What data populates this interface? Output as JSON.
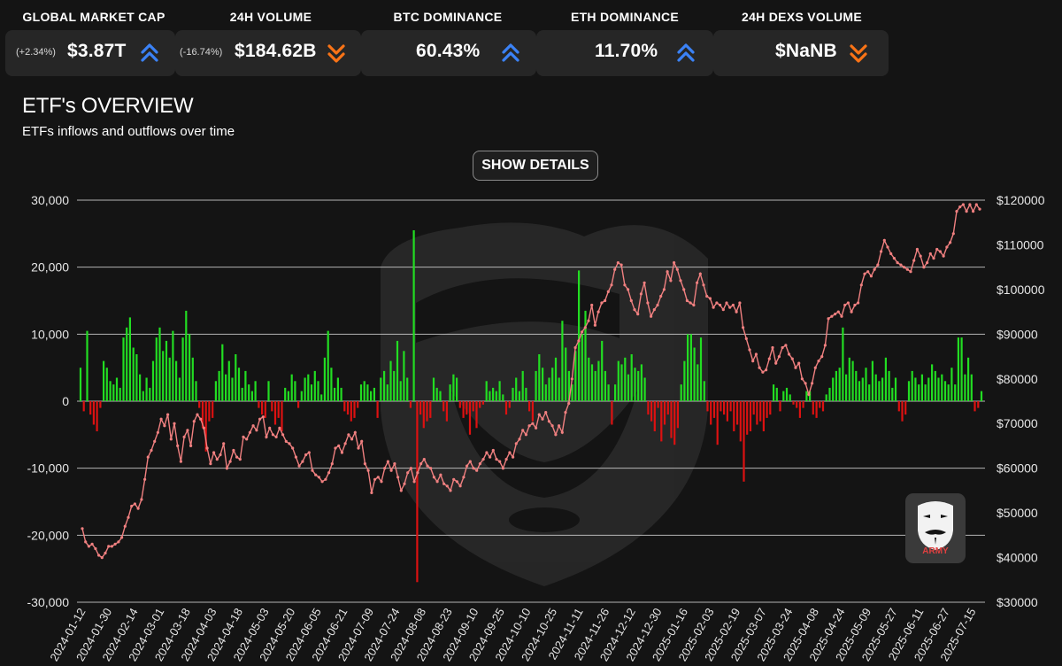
{
  "stats": [
    {
      "title": "GLOBAL MARKET CAP",
      "change": "(+2.34%)",
      "value": "$3.87T",
      "trend": "up",
      "trend_icon": "double-chevron-up-icon"
    },
    {
      "title": "24H VOLUME",
      "change": "(-16.74%)",
      "value": "$184.62B",
      "trend": "down",
      "trend_icon": "double-chevron-down-icon"
    },
    {
      "title": "BTC DOMINANCE",
      "change": "",
      "value": "60.43%",
      "trend": "up",
      "trend_icon": "double-chevron-up-icon"
    },
    {
      "title": "ETH DOMINANCE",
      "change": "",
      "value": "11.70%",
      "trend": "up",
      "trend_icon": "double-chevron-up-icon"
    },
    {
      "title": "24H DEXS VOLUME",
      "change": "",
      "value": "$NaNB",
      "trend": "down",
      "trend_icon": "double-chevron-down-icon"
    }
  ],
  "colors": {
    "background": "#141414",
    "card": "#262626",
    "up": "#3b82f6",
    "down": "#f97316",
    "inflow": "#22dd22",
    "outflow": "#dd1111",
    "price_line": "#f08080",
    "grid": "#cfcfcf"
  },
  "etf": {
    "title": "ETF's OVERVIEW",
    "subtitle": "ETFs inflows and outflows over time",
    "button_label": "SHOW DETAILS"
  },
  "badge": {
    "text": "ARMY",
    "icon": "army-mask-logo"
  },
  "chart_data": {
    "type": "bar+line",
    "grid": true,
    "left_axis": {
      "range": [
        -30000,
        30000
      ],
      "ticks": [
        "30,000",
        "20,000",
        "10,000",
        "0",
        "-10,000",
        "-20,000",
        "-30,000"
      ]
    },
    "right_axis": {
      "range": [
        30000,
        120000
      ],
      "ticks": [
        "$120000",
        "$110000",
        "$100000",
        "$90000",
        "$80000",
        "$70000",
        "$60000",
        "$50000",
        "$40000",
        "$30000"
      ]
    },
    "x_labels": [
      "2024-01-12",
      "2024-01-30",
      "2024-02-14",
      "2024-03-01",
      "2024-03-18",
      "2024-04-03",
      "2024-04-18",
      "2024-05-03",
      "2024-05-20",
      "2024-06-05",
      "2024-06-21",
      "2024-07-09",
      "2024-07-24",
      "2024-08-08",
      "2024-08-23",
      "2024-09-10",
      "2024-09-25",
      "2024-10-10",
      "2024-10-25",
      "2024-11-11",
      "2024-11-26",
      "2024-12-12",
      "2024-12-30",
      "2025-01-16",
      "2025-02-03",
      "2025-02-19",
      "2025-03-07",
      "2025-03-24",
      "2025-04-08",
      "2025-04-24",
      "2025-05-09",
      "2025-05-27",
      "2025-06-11",
      "2025-06-27",
      "2025-07-15"
    ],
    "flows_series": {
      "name": "",
      "color": "inflow/outflow",
      "values": [
        5000,
        -1500,
        10500,
        -2000,
        -3500,
        -4500,
        -1000,
        6000,
        5000,
        3000,
        2500,
        3500,
        2000,
        9500,
        11000,
        12500,
        8000,
        7000,
        4000,
        1500,
        3500,
        2000,
        6000,
        9500,
        11000,
        7500,
        9000,
        6500,
        10500,
        6000,
        3500,
        9500,
        13500,
        10000,
        6500,
        3000,
        -1000,
        -4000,
        -7500,
        -3000,
        -2500,
        3000,
        4500,
        8500,
        4000,
        6000,
        3500,
        7000,
        5000,
        2000,
        4500,
        2500,
        1500,
        3000,
        -1000,
        -2000,
        -2500,
        3000,
        -1500,
        -3500,
        -2500,
        -4500,
        2000,
        1500,
        4000,
        3000,
        -1000,
        1500,
        3500,
        4000,
        2500,
        4500,
        3000,
        1000,
        6500,
        10500,
        5000,
        2000,
        3500,
        2000,
        -1500,
        -2000,
        -3000,
        -2500,
        -1000,
        2500,
        3000,
        2500,
        1500,
        2000,
        -2500,
        3500,
        4500,
        2500,
        6000,
        4500,
        9000,
        3000,
        7500,
        3500,
        -1000,
        25500,
        -27000,
        -2000,
        -4000,
        -3000,
        -2500,
        3500,
        2000,
        1500,
        -1500,
        -3000,
        2500,
        4000,
        3500,
        -1000,
        -2500,
        -2000,
        -5000,
        -1500,
        -4000,
        -1000,
        -500,
        3000,
        1500,
        2000,
        1500,
        3000,
        1000,
        -2000,
        -1000,
        2000,
        3500,
        1500,
        4500,
        2000,
        -1500,
        -3000,
        4500,
        7000,
        5000,
        2500,
        3500,
        5000,
        6500,
        3500,
        12000,
        8000,
        4500,
        2500,
        7500,
        19500,
        10000,
        13500,
        6500,
        5500,
        4500,
        6000,
        9000,
        4500,
        2500,
        -3500,
        2500,
        6000,
        5500,
        6500,
        4000,
        7000,
        5000,
        4500,
        5500,
        3500,
        -2000,
        -3000,
        -4500,
        -1000,
        -6000,
        -3500,
        -2000,
        -5500,
        -6500,
        -4000,
        2500,
        6000,
        10000,
        10000,
        8000,
        5500,
        9500,
        3000,
        -1500,
        -3500,
        -2500,
        -6500,
        -1500,
        -2000,
        -3000,
        -1500,
        -4500,
        -3500,
        -6000,
        -12000,
        -5000,
        -4500,
        -2000,
        -3500,
        -3000,
        -4500,
        -2500,
        -2000,
        2500,
        2000,
        -1500,
        1500,
        2000,
        1000,
        -500,
        -1000,
        -2500,
        -1000,
        1500,
        1500,
        -2000,
        -2500,
        -1000,
        -1500,
        1000,
        2000,
        3500,
        4500,
        5000,
        11000,
        4000,
        6500,
        6000,
        4500,
        3000,
        3500,
        5000,
        2500,
        6000,
        4000,
        3000,
        3500,
        6500,
        4500,
        2000,
        3500,
        -1500,
        -3000,
        -2000,
        3000,
        4500,
        3500,
        2500,
        4000,
        2500,
        3500,
        5500,
        4500,
        3500,
        4000,
        3000,
        2500,
        5000,
        2500,
        9500,
        9500,
        4000,
        6500,
        4000,
        -1500,
        -1000,
        1500
      ],
      "neg_color": "outflow"
    },
    "price_series": {
      "name": "",
      "values": [
        46500,
        43500,
        42500,
        43000,
        42000,
        40500,
        40000,
        41000,
        42500,
        42500,
        43000,
        43500,
        44500,
        47000,
        49000,
        51500,
        52000,
        51000,
        53000,
        57500,
        62500,
        64000,
        66000,
        68000,
        71000,
        69500,
        72000,
        66500,
        70000,
        65000,
        61500,
        67000,
        68500,
        65000,
        70500,
        72000,
        71000,
        69000,
        64500,
        61000,
        63500,
        62000,
        63000,
        65500,
        60000,
        61500,
        64000,
        62500,
        62000,
        67000,
        66500,
        68000,
        69500,
        68500,
        71000,
        71500,
        67000,
        69000,
        67500,
        67000,
        69000,
        67500,
        66000,
        65500,
        64500,
        62500,
        60500,
        61500,
        63000,
        63500,
        59500,
        58500,
        58000,
        57000,
        57500,
        59000,
        61000,
        64500,
        65000,
        63500,
        65500,
        67500,
        66500,
        68000,
        64500,
        66000,
        61000,
        59500,
        54500,
        57500,
        58000,
        57000,
        60000,
        61500,
        59500,
        61000,
        58000,
        55000,
        56500,
        59000,
        60000,
        57000,
        59000,
        61000,
        62000,
        60500,
        60000,
        58000,
        57000,
        58500,
        56500,
        56000,
        55000,
        57500,
        57000,
        56000,
        58000,
        60500,
        61500,
        60000,
        59500,
        61000,
        62000,
        63500,
        62500,
        64000,
        62000,
        61500,
        60000,
        62000,
        63500,
        62500,
        65500,
        66500,
        68500,
        67500,
        69500,
        70000,
        69000,
        72000,
        71000,
        72500,
        70500,
        69500,
        67500,
        69500,
        68000,
        72500,
        74500,
        80000,
        87000,
        88500,
        90500,
        91500,
        93000,
        96500,
        92000,
        95000,
        97000,
        97500,
        99500,
        101000,
        104500,
        106000,
        105500,
        101000,
        100000,
        97500,
        95500,
        94500,
        99000,
        101500,
        97000,
        94000,
        95500,
        96500,
        98500,
        100000,
        104000,
        102000,
        106000,
        104500,
        102000,
        100000,
        97500,
        97000,
        96500,
        101500,
        103500,
        101000,
        98500,
        98000,
        96000,
        97000,
        96500,
        95500,
        97000,
        96000,
        96500,
        95000,
        97000,
        91500,
        89000,
        86500,
        84000,
        85500,
        82500,
        81500,
        82000,
        84500,
        87000,
        83500,
        85000,
        87000,
        87500,
        85500,
        84500,
        82500,
        83500,
        80000,
        79000,
        76500,
        79000,
        82500,
        84000,
        85000,
        87500,
        93500,
        94000,
        94500,
        95000,
        94000,
        96500,
        97000,
        95000,
        96500,
        97000,
        101000,
        103500,
        104000,
        103000,
        104500,
        105500,
        108500,
        111000,
        109500,
        108000,
        107000,
        106000,
        105500,
        105000,
        104500,
        104000,
        106500,
        109000,
        107500,
        105000,
        106000,
        108000,
        107000,
        109000,
        108500,
        107500,
        109500,
        110500,
        112500,
        117500,
        118500,
        119000,
        117500,
        119000,
        117500,
        119000,
        118000
      ]
    }
  }
}
